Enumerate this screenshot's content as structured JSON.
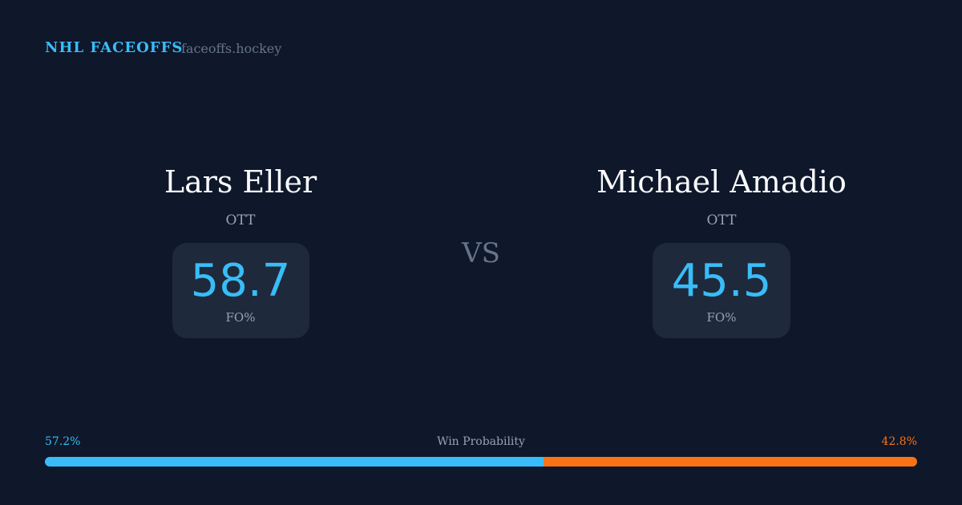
{
  "header": {
    "brand": "NHL FACEOFFS",
    "site": "faceoffs.hockey"
  },
  "players": [
    {
      "name": "Lars Eller",
      "team": "OTT",
      "fo_pct": "58.7",
      "fo_label": "FO%"
    },
    {
      "name": "Michael Amadio",
      "team": "OTT",
      "fo_pct": "45.5",
      "fo_label": "FO%"
    }
  ],
  "vs": "VS",
  "win_probability": {
    "label": "Win Probability",
    "left": "57.2%",
    "right": "42.8%",
    "left_value": 57.2,
    "right_value": 42.8,
    "left_color": "#38bdf8",
    "right_color": "#f97316"
  }
}
